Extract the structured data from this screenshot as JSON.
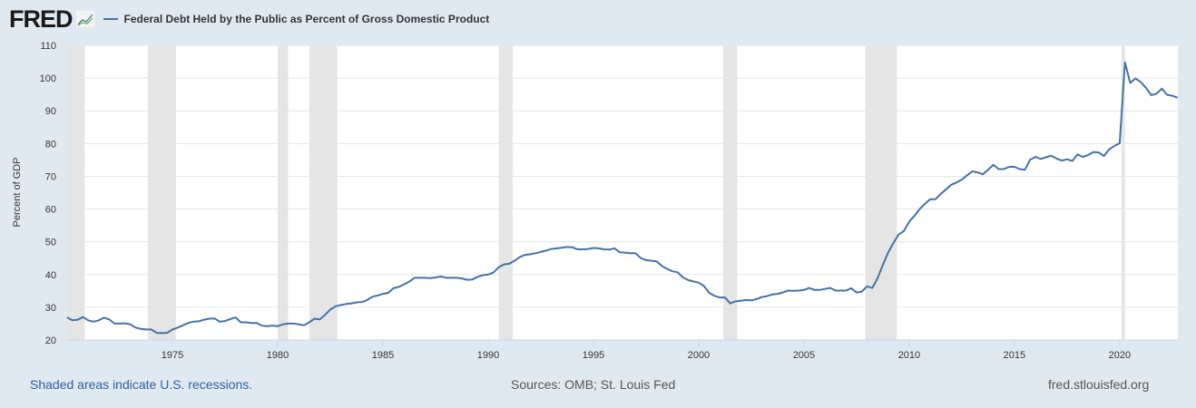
{
  "header": {
    "logo": "FRED",
    "title": "Federal Debt Held by the Public as Percent of Gross Domestic Product"
  },
  "footer": {
    "recession_note": "Shaded areas indicate U.S. recessions.",
    "sources": "Sources: OMB; St. Louis Fed",
    "site": "fred.stlouisfed.org"
  },
  "chart_data": {
    "type": "line",
    "title": "Federal Debt Held by the Public as Percent of Gross Domestic Product",
    "xlabel": "",
    "ylabel": "Percent of GDP",
    "ylim": [
      20,
      110
    ],
    "xlim": [
      "1970-01-01",
      "2022-10-01"
    ],
    "yticks": [
      20,
      30,
      40,
      50,
      60,
      70,
      80,
      90,
      100,
      110
    ],
    "xticks": [
      "1975",
      "1980",
      "1985",
      "1990",
      "1995",
      "2000",
      "2005",
      "2010",
      "2015",
      "2020"
    ],
    "grid": "horizontal",
    "legend": "top-left",
    "line_color": "#4572a7",
    "recession_color": "#e5e5e5",
    "recessions": [
      [
        "1969-12-01",
        "1970-11-01"
      ],
      [
        "1973-11-01",
        "1975-03-01"
      ],
      [
        "1980-01-01",
        "1980-07-01"
      ],
      [
        "1981-07-01",
        "1982-11-01"
      ],
      [
        "1990-07-01",
        "1991-03-01"
      ],
      [
        "2001-03-01",
        "2001-11-01"
      ],
      [
        "2007-12-01",
        "2009-06-01"
      ],
      [
        "2020-02-01",
        "2020-04-01"
      ]
    ],
    "frequency": "Quarterly",
    "series": [
      {
        "name": "Federal Debt Held by the Public as Percent of Gross Domestic Product",
        "years": [
          1970,
          1971,
          1972,
          1973,
          1974,
          1975,
          1976,
          1977,
          1978,
          1979,
          1980,
          1981,
          1982,
          1983,
          1984,
          1985,
          1986,
          1987,
          1988,
          1989,
          1990,
          1991,
          1992,
          1993,
          1994,
          1995,
          1996,
          1997,
          1998,
          1999,
          2000,
          2001,
          2002,
          2003,
          2004,
          2005,
          2006,
          2007,
          2008,
          2009,
          2010,
          2011,
          2012,
          2013,
          2014,
          2015,
          2016,
          2017,
          2018,
          2019,
          2020,
          2021,
          2022
        ],
        "quarterly_values": [
          [
            26.9,
            26.0,
            26.2,
            27.0
          ],
          [
            26.0,
            25.6,
            26.0,
            26.8
          ],
          [
            26.3,
            25.0,
            25.0,
            25.1
          ],
          [
            24.8,
            23.8,
            23.4,
            23.2
          ],
          [
            23.2,
            22.2,
            22.1,
            22.2
          ],
          [
            23.2,
            23.8,
            24.5,
            25.2
          ],
          [
            25.6,
            25.7,
            26.2,
            26.5
          ],
          [
            26.6,
            25.6,
            25.8,
            26.4
          ],
          [
            26.9,
            25.4,
            25.4,
            25.2
          ],
          [
            25.2,
            24.4,
            24.2,
            24.4
          ],
          [
            24.2,
            24.8,
            25.0,
            25.0
          ],
          [
            24.8,
            24.5,
            25.4,
            26.5
          ],
          [
            26.3,
            27.7,
            29.3,
            30.3
          ],
          [
            30.7,
            31.0,
            31.2,
            31.5
          ],
          [
            31.6,
            32.2,
            33.2,
            33.6
          ],
          [
            34.1,
            34.4,
            35.8,
            36.2
          ],
          [
            37.0,
            37.8,
            39.0,
            39.0
          ],
          [
            39.0,
            38.9,
            39.1,
            39.4
          ],
          [
            39.0,
            39.0,
            39.0,
            38.8
          ],
          [
            38.4,
            38.5,
            39.3,
            39.8
          ],
          [
            40.0,
            40.6,
            42.2,
            43.1
          ],
          [
            43.3,
            44.2,
            45.3,
            46.0
          ],
          [
            46.2,
            46.5,
            46.9,
            47.3
          ],
          [
            47.8,
            48.0,
            48.2,
            48.4
          ],
          [
            48.3,
            47.7,
            47.7,
            47.8
          ],
          [
            48.1,
            48.0,
            47.7,
            47.6
          ],
          [
            48.0,
            46.8,
            46.7,
            46.5
          ],
          [
            46.5,
            45.0,
            44.4,
            44.2
          ],
          [
            44.0,
            42.6,
            41.7,
            41.0
          ],
          [
            40.7,
            39.1,
            38.3,
            37.9
          ],
          [
            37.5,
            36.5,
            34.4,
            33.5
          ],
          [
            33.0,
            33.0,
            31.2,
            31.8
          ],
          [
            32.0,
            32.2,
            32.1,
            32.5
          ],
          [
            33.1,
            33.4,
            33.9,
            34.1
          ],
          [
            34.5,
            35.1,
            35.0,
            35.1
          ],
          [
            35.3,
            35.9,
            35.3,
            35.3
          ],
          [
            35.6,
            35.9,
            35.1,
            35.1
          ],
          [
            35.1,
            35.8,
            34.5,
            34.8
          ],
          [
            36.4,
            35.9,
            38.9,
            42.9
          ],
          [
            46.7,
            49.6,
            52.2,
            53.3
          ],
          [
            56.1,
            57.9,
            60.0,
            61.6
          ],
          [
            63.0,
            63.0,
            64.6,
            66.0
          ],
          [
            67.4,
            68.1,
            69.0,
            70.3
          ],
          [
            71.5,
            71.2,
            70.6,
            72.0
          ],
          [
            73.5,
            72.2,
            72.2,
            72.9
          ],
          [
            72.9,
            72.2,
            72.0,
            75.1
          ],
          [
            75.9,
            75.3,
            75.8,
            76.3
          ],
          [
            75.4,
            74.8,
            75.2,
            74.7
          ],
          [
            76.7,
            75.9,
            76.5,
            77.4
          ],
          [
            77.3,
            76.2,
            78.2,
            79.3
          ],
          [
            80.1,
            104.8,
            98.5,
            99.9
          ],
          [
            98.8,
            97.0,
            94.8,
            95.2
          ],
          [
            96.8,
            94.9,
            94.6,
            94.0
          ]
        ]
      }
    ]
  }
}
